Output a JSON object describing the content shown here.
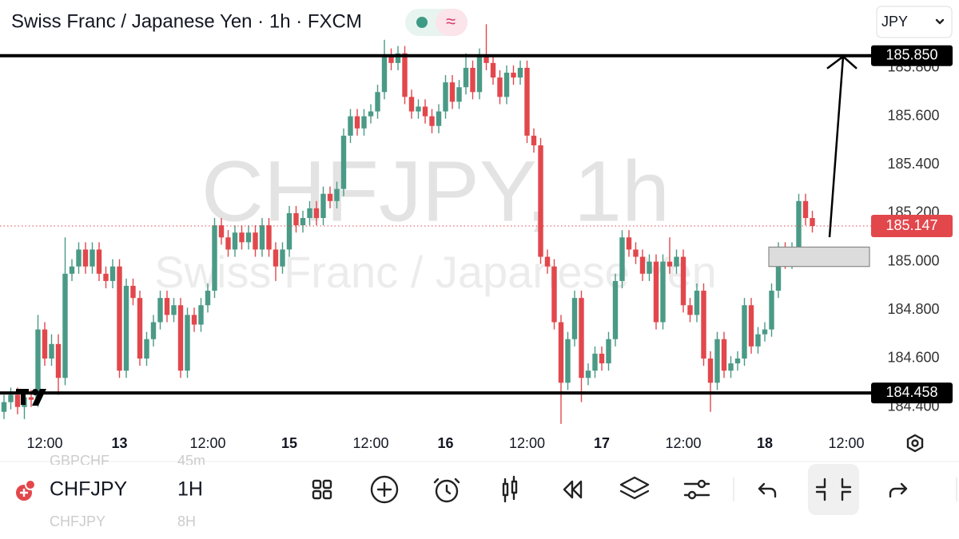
{
  "header": {
    "title": "Swiss Franc / Japanese Yen · 1h · FXCM",
    "currency": "JPY"
  },
  "chart_data": {
    "type": "candlestick",
    "watermark": [
      "CHFJPY, 1h",
      "Swiss Franc / Japanese Yen"
    ],
    "up_color": "#4a9a86",
    "down_color": "#e2474c",
    "x": [
      null,
      null,
      null,
      null,
      null,
      null,
      "12:00",
      null,
      null,
      null,
      null,
      null,
      null,
      null,
      null,
      null,
      null,
      "13",
      null,
      null,
      null,
      null,
      null,
      null,
      null,
      null,
      null,
      null,
      null,
      null,
      "12:00",
      null,
      null,
      null,
      null,
      null,
      null,
      null,
      null,
      null,
      null,
      null,
      "15",
      null,
      null,
      null,
      null,
      null,
      null,
      null,
      null,
      null,
      null,
      null,
      "12:00",
      null,
      null,
      null,
      null,
      null,
      null,
      null,
      null,
      null,
      null,
      "16",
      null,
      null,
      null,
      null,
      null,
      null,
      null,
      null,
      null,
      null,
      null,
      "12:00",
      null,
      null,
      null,
      null,
      null,
      null,
      null,
      null,
      null,
      null,
      "17",
      null,
      null,
      null,
      null,
      null,
      null,
      null,
      null,
      null,
      null,
      null,
      "12:00",
      null,
      null,
      null,
      null,
      null,
      null,
      null,
      null,
      null,
      null,
      null,
      "18",
      null,
      null,
      null,
      null,
      null,
      null,
      null,
      null,
      null,
      null,
      null,
      "12:00"
    ],
    "open": [
      184.38,
      184.42,
      184.45,
      184.4,
      184.44,
      184.43,
      184.72,
      184.6,
      184.66,
      184.52,
      184.95,
      184.98,
      185.05,
      184.98,
      185.05,
      184.95,
      184.92,
      184.98,
      184.55,
      184.9,
      184.85,
      184.6,
      184.68,
      184.75,
      184.85,
      184.78,
      184.82,
      184.55,
      184.78,
      184.74,
      184.82,
      184.88,
      185.15,
      185.1,
      185.05,
      185.12,
      185.08,
      185.12,
      185.05,
      185.15,
      185.05,
      184.98,
      185.05,
      185.2,
      185.15,
      185.18,
      185.22,
      185.18,
      185.28,
      185.25,
      185.3,
      185.52,
      185.6,
      185.55,
      185.6,
      185.62,
      185.7,
      185.85,
      185.82,
      185.86,
      185.68,
      185.62,
      185.64,
      185.6,
      185.56,
      185.62,
      185.74,
      185.66,
      185.72,
      185.8,
      185.7,
      185.85,
      185.82,
      185.76,
      185.68,
      185.78,
      185.76,
      185.8,
      185.52,
      185.48,
      185.02,
      184.98,
      184.75,
      184.5,
      184.68,
      184.85,
      184.52,
      184.55,
      184.62,
      184.58,
      184.68,
      184.92,
      185.1,
      185.05,
      185.02,
      184.95,
      185.0,
      184.75,
      185.0,
      184.98,
      185.02,
      184.82,
      184.78,
      184.88,
      184.6,
      184.5,
      184.68,
      184.55,
      184.58,
      184.6,
      184.82,
      184.65,
      184.7,
      184.72,
      184.88,
      185.05,
      185.0,
      185.05,
      185.25,
      185.18,
      null,
      null,
      null,
      null,
      null
    ],
    "high": [
      184.45,
      184.48,
      184.48,
      184.47,
      184.47,
      184.78,
      184.75,
      184.7,
      184.7,
      185.1,
      185.01,
      185.08,
      185.08,
      185.08,
      185.08,
      184.98,
      185.01,
      185.01,
      184.93,
      184.93,
      184.88,
      184.71,
      184.78,
      184.88,
      184.88,
      184.85,
      184.85,
      184.81,
      184.81,
      184.85,
      184.91,
      185.18,
      185.18,
      185.13,
      185.15,
      185.15,
      185.15,
      185.15,
      185.18,
      185.18,
      185.08,
      185.08,
      185.23,
      185.23,
      185.21,
      185.25,
      185.25,
      185.31,
      185.31,
      185.33,
      185.55,
      185.63,
      185.63,
      185.63,
      185.65,
      185.73,
      185.92,
      185.88,
      185.89,
      185.89,
      185.71,
      185.67,
      185.67,
      185.63,
      185.65,
      185.77,
      185.77,
      185.75,
      185.86,
      185.83,
      185.88,
      185.98,
      185.85,
      185.79,
      185.81,
      185.81,
      185.83,
      185.83,
      185.55,
      185.51,
      185.05,
      185.01,
      184.78,
      184.71,
      184.88,
      184.88,
      184.58,
      184.65,
      184.65,
      184.71,
      184.95,
      185.13,
      185.13,
      185.08,
      185.05,
      185.03,
      185.03,
      185.03,
      185.1,
      185.05,
      185.05,
      184.85,
      184.91,
      184.91,
      184.63,
      184.71,
      184.71,
      184.61,
      184.63,
      184.85,
      184.85,
      184.73,
      184.75,
      184.91,
      185.08,
      185.08,
      185.08,
      185.28,
      185.28,
      185.21,
      null,
      null,
      null,
      null,
      null
    ],
    "low": [
      184.35,
      184.39,
      184.37,
      184.35,
      184.4,
      184.4,
      184.57,
      184.57,
      184.45,
      184.49,
      184.92,
      184.95,
      184.95,
      184.95,
      184.92,
      184.89,
      184.89,
      184.52,
      184.52,
      184.82,
      184.57,
      184.57,
      184.65,
      184.72,
      184.75,
      184.75,
      184.52,
      184.52,
      184.71,
      184.71,
      184.79,
      184.85,
      185.07,
      185.02,
      185.02,
      185.05,
      185.05,
      185.02,
      185.02,
      185.02,
      184.92,
      184.95,
      185.02,
      185.12,
      185.12,
      185.15,
      185.15,
      185.15,
      185.22,
      185.22,
      185.27,
      185.49,
      185.52,
      185.52,
      185.57,
      185.59,
      185.67,
      185.79,
      185.79,
      185.65,
      185.59,
      185.59,
      185.57,
      185.53,
      185.53,
      185.59,
      185.63,
      185.63,
      185.69,
      185.67,
      185.67,
      185.79,
      185.73,
      185.65,
      185.65,
      185.73,
      185.73,
      185.49,
      185.45,
      184.99,
      184.95,
      184.72,
      184.33,
      184.47,
      184.65,
      184.42,
      184.49,
      184.52,
      184.55,
      184.55,
      184.65,
      184.89,
      185.02,
      184.99,
      184.92,
      184.92,
      184.72,
      184.72,
      184.95,
      184.95,
      184.79,
      184.75,
      184.75,
      184.57,
      184.38,
      184.47,
      184.52,
      184.52,
      184.55,
      184.57,
      184.62,
      184.62,
      184.67,
      184.69,
      184.85,
      184.97,
      184.97,
      185.02,
      185.15,
      185.12,
      null,
      null,
      null,
      null,
      null
    ],
    "close": [
      184.42,
      184.45,
      184.4,
      184.44,
      184.43,
      184.72,
      184.6,
      184.66,
      184.52,
      184.95,
      184.98,
      185.05,
      184.98,
      185.05,
      184.95,
      184.92,
      184.98,
      184.55,
      184.9,
      184.85,
      184.6,
      184.68,
      184.75,
      184.85,
      184.78,
      184.82,
      184.55,
      184.78,
      184.74,
      184.82,
      184.88,
      185.15,
      185.1,
      185.05,
      185.12,
      185.08,
      185.12,
      185.05,
      185.15,
      185.05,
      184.98,
      185.05,
      185.2,
      185.15,
      185.18,
      185.22,
      185.18,
      185.28,
      185.25,
      185.3,
      185.52,
      185.6,
      185.55,
      185.6,
      185.62,
      185.7,
      185.85,
      185.82,
      185.86,
      185.68,
      185.62,
      185.64,
      185.6,
      185.56,
      185.62,
      185.74,
      185.66,
      185.72,
      185.8,
      185.7,
      185.85,
      185.82,
      185.76,
      185.68,
      185.78,
      185.76,
      185.8,
      185.52,
      185.48,
      185.02,
      184.98,
      184.75,
      184.5,
      184.68,
      184.85,
      184.52,
      184.55,
      184.62,
      184.58,
      184.68,
      184.92,
      185.1,
      185.05,
      185.02,
      184.95,
      185.0,
      184.75,
      185.0,
      184.98,
      185.02,
      184.82,
      184.78,
      184.88,
      184.6,
      184.5,
      184.68,
      184.55,
      184.58,
      184.6,
      184.82,
      184.65,
      184.7,
      184.72,
      184.88,
      185.05,
      185.0,
      185.05,
      185.25,
      185.18,
      185.147,
      null,
      null,
      null,
      null,
      null
    ],
    "ylim": [
      184.3,
      186.08
    ],
    "yticks": [
      {
        "value": 184.4,
        "label": "184.400"
      },
      {
        "value": 184.6,
        "label": "184.600"
      },
      {
        "value": 184.8,
        "label": "184.800"
      },
      {
        "value": 185.0,
        "label": "185.000"
      },
      {
        "value": 185.2,
        "label": "185.200"
      },
      {
        "value": 185.4,
        "label": "185.400"
      },
      {
        "value": 185.6,
        "label": "185.600"
      },
      {
        "value": 185.8,
        "label": "185.800"
      }
    ],
    "levels": [
      {
        "value": 185.85,
        "label": "185.850"
      },
      {
        "value": 184.458,
        "label": "184.458"
      }
    ],
    "last_price": {
      "value": 185.147,
      "label": "185.147",
      "color": "#e2474c"
    },
    "zone": [
      184.98,
      185.06
    ]
  },
  "toolbar": {
    "symbol": "CHFJPY",
    "interval": "1H",
    "hints": [
      "GBPCHF",
      "45m",
      "CHFJPY",
      "8H"
    ]
  }
}
